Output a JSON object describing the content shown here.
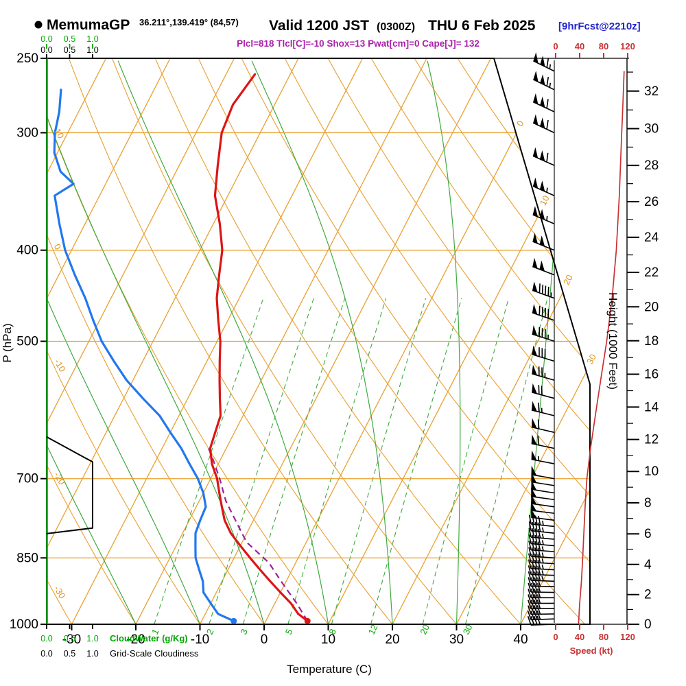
{
  "header": {
    "station_marker": "●",
    "model": "MemumaGP",
    "coords": "36.211°,139.419° (84,57)",
    "valid_label": "Valid 1200 JST",
    "valid_utc": "(0300Z)",
    "valid_date": "THU 6 Feb 2025",
    "forecast_tag": "[9hrFcst@2210z]",
    "indices": "Plcl=818 Tlcl[C]=-10 Shox=13 Pwat[cm]=0 Cape[J]= 132"
  },
  "axes": {
    "pressure": {
      "label": "P (hPa)",
      "ticks": [
        250,
        300,
        400,
        500,
        700,
        850,
        1000
      ]
    },
    "temperature": {
      "label": "Temperature (C)",
      "ticks": [
        -30,
        -20,
        -10,
        0,
        10,
        20,
        30,
        40
      ]
    },
    "height": {
      "label": "Height (1000 Feet)",
      "tick_step": 2,
      "tick_max": 32
    },
    "speed": {
      "label": "Speed (kt)",
      "ticks": [
        0,
        40,
        80,
        120
      ]
    },
    "cloud_scale": {
      "ticks": [
        "0.0",
        "0.5",
        "1.0"
      ],
      "cloudwater_label": "CloudWater (g/Kg)",
      "cloudiness_label": "Grid-Scale Cloudiness"
    }
  },
  "colors": {
    "orange": "#E8A030",
    "orange_text": "#DD9620",
    "green": "#3FA93F",
    "green_bright": "#00A800",
    "red": "#DD1515",
    "blue": "#2277EE",
    "purple": "#992299",
    "header_blue": "#2222CC",
    "header_magenta": "#AA22AA",
    "speed_red": "#C83232",
    "black": "#000000"
  },
  "chart_data": {
    "type": "line",
    "subtype": "skew-t-log-p-sounding",
    "title": "MemumaGP sounding valid 1200 JST THU 6 Feb 2025 (9hr forecast)",
    "pressure_range_hpa": [
      250,
      1000
    ],
    "temperature_axis_range_c": [
      -30,
      40
    ],
    "grid": true,
    "series": [
      {
        "name": "temperature",
        "units": "C",
        "color": "#DD1515",
        "points": [
          [
            992,
            6.5
          ],
          [
            975,
            4.5
          ],
          [
            950,
            2.5
          ],
          [
            925,
            0
          ],
          [
            900,
            -2.5
          ],
          [
            875,
            -5
          ],
          [
            850,
            -7.5
          ],
          [
            825,
            -10
          ],
          [
            800,
            -12.5
          ],
          [
            775,
            -14.5
          ],
          [
            750,
            -16
          ],
          [
            725,
            -17.5
          ],
          [
            700,
            -19
          ],
          [
            675,
            -21
          ],
          [
            650,
            -22.5
          ],
          [
            625,
            -23
          ],
          [
            600,
            -23.5
          ],
          [
            575,
            -25
          ],
          [
            550,
            -26.5
          ],
          [
            525,
            -28
          ],
          [
            500,
            -29.5
          ],
          [
            475,
            -31.5
          ],
          [
            450,
            -33.5
          ],
          [
            425,
            -35
          ],
          [
            400,
            -36.5
          ],
          [
            375,
            -39
          ],
          [
            350,
            -42
          ],
          [
            325,
            -44
          ],
          [
            300,
            -46
          ],
          [
            280,
            -46.5
          ],
          [
            260,
            -45.5
          ]
        ]
      },
      {
        "name": "dewpoint",
        "units": "C",
        "color": "#2277EE",
        "points": [
          [
            992,
            -5
          ],
          [
            975,
            -8
          ],
          [
            950,
            -10
          ],
          [
            925,
            -12
          ],
          [
            900,
            -13
          ],
          [
            875,
            -14.5
          ],
          [
            850,
            -16
          ],
          [
            825,
            -17
          ],
          [
            800,
            -18
          ],
          [
            775,
            -18.3
          ],
          [
            750,
            -18.5
          ],
          [
            725,
            -20
          ],
          [
            700,
            -22
          ],
          [
            675,
            -24.5
          ],
          [
            650,
            -27
          ],
          [
            625,
            -30
          ],
          [
            600,
            -33
          ],
          [
            575,
            -37
          ],
          [
            550,
            -41
          ],
          [
            525,
            -44.5
          ],
          [
            500,
            -48
          ],
          [
            475,
            -51
          ],
          [
            450,
            -54
          ],
          [
            425,
            -57.5
          ],
          [
            400,
            -61
          ],
          [
            375,
            -64
          ],
          [
            350,
            -67
          ],
          [
            340,
            -65
          ],
          [
            330,
            -68
          ],
          [
            315,
            -70.5
          ],
          [
            300,
            -72
          ],
          [
            285,
            -73
          ],
          [
            270,
            -74.5
          ]
        ]
      },
      {
        "name": "parcel_path",
        "units": "C",
        "color": "#992299",
        "style": "dashed",
        "points": [
          [
            992,
            6.5
          ],
          [
            950,
            3.4
          ],
          [
            900,
            -0.8
          ],
          [
            860,
            -4.2
          ],
          [
            818,
            -9.3
          ],
          [
            780,
            -12.4
          ],
          [
            740,
            -15.8
          ],
          [
            700,
            -18.6
          ],
          [
            670,
            -21.0
          ],
          [
            645,
            -23.2
          ]
        ]
      },
      {
        "name": "wind_speed",
        "units": "kt",
        "color": "#C83232",
        "points": [
          [
            1000,
            38
          ],
          [
            950,
            40
          ],
          [
            900,
            43
          ],
          [
            850,
            45
          ],
          [
            800,
            47
          ],
          [
            750,
            49
          ],
          [
            700,
            52
          ],
          [
            650,
            58
          ],
          [
            600,
            66
          ],
          [
            550,
            75
          ],
          [
            500,
            85
          ],
          [
            450,
            94
          ],
          [
            400,
            101
          ],
          [
            350,
            106
          ],
          [
            300,
            110
          ],
          [
            280,
            112
          ],
          [
            258,
            114
          ]
        ]
      },
      {
        "name": "grid_scale_cloudiness",
        "units": "fraction 0-1",
        "color": "#000000",
        "points": [
          [
            632,
            0
          ],
          [
            672,
            1
          ],
          [
            790,
            1
          ],
          [
            801,
            0
          ]
        ]
      },
      {
        "name": "cloud_water",
        "units": "g/Kg",
        "color": "#00A800",
        "points": [
          [
            1000,
            0
          ],
          [
            250,
            0
          ]
        ]
      }
    ],
    "wind_barbs": [
      {
        "p": 1000,
        "dir": 268,
        "spd": 38
      },
      {
        "p": 987,
        "dir": 268,
        "spd": 38
      },
      {
        "p": 975,
        "dir": 269,
        "spd": 39
      },
      {
        "p": 962,
        "dir": 269,
        "spd": 40
      },
      {
        "p": 950,
        "dir": 270,
        "spd": 40
      },
      {
        "p": 937,
        "dir": 270,
        "spd": 41
      },
      {
        "p": 925,
        "dir": 271,
        "spd": 42
      },
      {
        "p": 912,
        "dir": 271,
        "spd": 42
      },
      {
        "p": 900,
        "dir": 272,
        "spd": 43
      },
      {
        "p": 887,
        "dir": 272,
        "spd": 43
      },
      {
        "p": 875,
        "dir": 273,
        "spd": 44
      },
      {
        "p": 862,
        "dir": 273,
        "spd": 44
      },
      {
        "p": 850,
        "dir": 274,
        "spd": 45
      },
      {
        "p": 837,
        "dir": 274,
        "spd": 45
      },
      {
        "p": 825,
        "dir": 275,
        "spd": 46
      },
      {
        "p": 812,
        "dir": 275,
        "spd": 46
      },
      {
        "p": 800,
        "dir": 276,
        "spd": 47
      },
      {
        "p": 787,
        "dir": 276,
        "spd": 47
      },
      {
        "p": 775,
        "dir": 277,
        "spd": 48
      },
      {
        "p": 762,
        "dir": 277,
        "spd": 48
      },
      {
        "p": 750,
        "dir": 278,
        "spd": 49
      },
      {
        "p": 737,
        "dir": 278,
        "spd": 50
      },
      {
        "p": 725,
        "dir": 279,
        "spd": 50
      },
      {
        "p": 712,
        "dir": 279,
        "spd": 51
      },
      {
        "p": 700,
        "dir": 280,
        "spd": 52
      },
      {
        "p": 675,
        "dir": 281,
        "spd": 54
      },
      {
        "p": 650,
        "dir": 282,
        "spd": 58
      },
      {
        "p": 625,
        "dir": 283,
        "spd": 62
      },
      {
        "p": 600,
        "dir": 284,
        "spd": 66
      },
      {
        "p": 575,
        "dir": 285,
        "spd": 70
      },
      {
        "p": 550,
        "dir": 286,
        "spd": 75
      },
      {
        "p": 525,
        "dir": 287,
        "spd": 80
      },
      {
        "p": 500,
        "dir": 288,
        "spd": 85
      },
      {
        "p": 475,
        "dir": 289,
        "spd": 90
      },
      {
        "p": 450,
        "dir": 290,
        "spd": 94
      },
      {
        "p": 425,
        "dir": 291,
        "spd": 98
      },
      {
        "p": 400,
        "dir": 292,
        "spd": 101
      },
      {
        "p": 375,
        "dir": 293,
        "spd": 104
      },
      {
        "p": 350,
        "dir": 294,
        "spd": 106
      },
      {
        "p": 325,
        "dir": 294,
        "spd": 108
      },
      {
        "p": 300,
        "dir": 295,
        "spd": 110
      },
      {
        "p": 285,
        "dir": 295,
        "spd": 112
      },
      {
        "p": 270,
        "dir": 296,
        "spd": 113
      },
      {
        "p": 258,
        "dir": 296,
        "spd": 114
      }
    ],
    "background": {
      "isotherms_c": {
        "start": -70,
        "end": 40,
        "step": 10,
        "labeled_on_right_edge": [
          0,
          10,
          20,
          30
        ]
      },
      "dry_adiabats_c": {
        "start": -30,
        "end": 140,
        "step": 10,
        "labeled_on_left_edge": [
          10,
          0,
          -10,
          -20,
          -30
        ]
      },
      "moist_adiabats_c": {
        "start": -20,
        "end": 40,
        "step": 10
      },
      "mixing_ratio_g_kg": [
        1,
        2,
        3,
        5,
        8,
        12,
        20,
        30
      ],
      "pressure_gridlines_hpa": [
        300,
        400,
        500,
        700,
        850
      ]
    },
    "speed_axis_range_kt": [
      0,
      120
    ],
    "height_axis_range_kft": [
      0,
      32
    ]
  }
}
